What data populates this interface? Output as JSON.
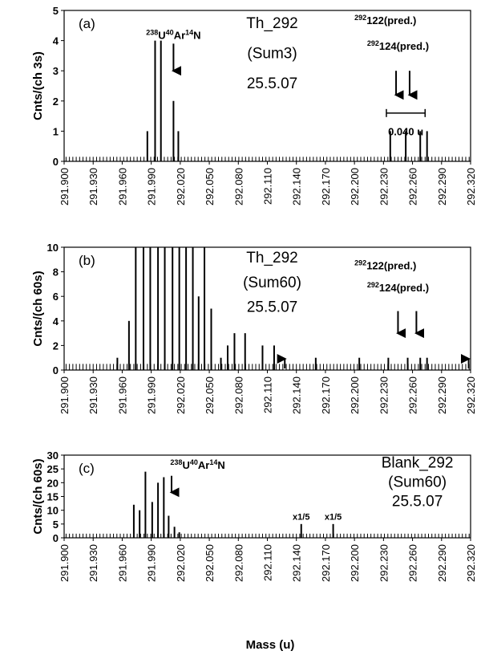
{
  "xlabel": "Mass (u)",
  "chart_data": [
    {
      "type": "bar",
      "panel": "(a)",
      "ylabel": "Cnts/(ch 3s)",
      "xlim": [
        291.9,
        292.32
      ],
      "ylim": [
        0,
        5
      ],
      "yticks": [
        0,
        1,
        2,
        3,
        4,
        5
      ],
      "xticks": [
        "291.900",
        "291.930",
        "291.960",
        "291.990",
        "292.020",
        "292.050",
        "292.080",
        "292.110",
        "292.140",
        "292.170",
        "292.200",
        "292.230",
        "292.260",
        "292.290",
        "292.320"
      ],
      "baseline": 0.15,
      "x": [
        291.986,
        291.994,
        292.0,
        292.013,
        292.018,
        292.237,
        292.253,
        292.268,
        292.275
      ],
      "values": [
        1,
        4,
        4,
        2,
        1,
        1,
        1,
        1,
        1
      ],
      "annotations": [
        {
          "text": "Th_292",
          "x": 292.115,
          "y": 4.6
        },
        {
          "text": "(Sum3)",
          "x": 292.115,
          "y": 3.6
        },
        {
          "text": "25.5.07",
          "x": 292.115,
          "y": 2.6
        }
      ],
      "isotope_labels": [
        {
          "mass": "238",
          "el": "U",
          "mass2": "40",
          "el2": "Ar",
          "mass3": "14",
          "el3": "N",
          "x": 292.013,
          "y": 4.05
        },
        {
          "mass": "292",
          "el": "122(pred.)",
          "x": 292.232,
          "y": 4.55
        },
        {
          "mass": "292",
          "el": "124(pred.)",
          "x": 292.245,
          "y": 3.7
        }
      ],
      "arrows": [
        {
          "x": 292.013,
          "y_top": 3.9,
          "y_bottom": 3.0
        },
        {
          "x": 292.243,
          "y_top": 3.0,
          "y_bottom": 2.2
        },
        {
          "x": 292.257,
          "y_top": 3.0,
          "y_bottom": 2.2
        }
      ],
      "scale_bar": {
        "x0": 292.233,
        "x1": 292.273,
        "y": 1.6,
        "label": "0.040 u",
        "label_x": 292.253,
        "label_y": 1.0
      }
    },
    {
      "type": "bar",
      "panel": "(b)",
      "ylabel": "Cnts/(ch 60s)",
      "xlim": [
        291.9,
        292.32
      ],
      "ylim": [
        0,
        10
      ],
      "yticks": [
        0,
        2,
        4,
        6,
        8,
        10
      ],
      "xticks": [
        "291.900",
        "291.930",
        "291.960",
        "291.990",
        "292.020",
        "292.050",
        "292.080",
        "292.110",
        "292.140",
        "292.170",
        "292.200",
        "292.230",
        "292.260",
        "292.290",
        "292.320"
      ],
      "baseline": 0.5,
      "x": [
        291.955,
        291.967,
        291.974,
        291.982,
        291.989,
        291.997,
        292.004,
        292.012,
        292.019,
        292.026,
        292.033,
        292.039,
        292.045,
        292.052,
        292.062,
        292.069,
        292.076,
        292.087,
        292.105,
        292.117,
        292.16,
        292.205,
        292.235,
        292.255,
        292.268,
        292.275
      ],
      "values": [
        1,
        4,
        10,
        10,
        10,
        10,
        10,
        10,
        10,
        10,
        10,
        6,
        10,
        5,
        1,
        2,
        3,
        3,
        2,
        2,
        1,
        1,
        1,
        1,
        1,
        1
      ],
      "annotations": [
        {
          "text": "Th_292",
          "x": 292.115,
          "y": 9.2
        },
        {
          "text": "(Sum60)",
          "x": 292.115,
          "y": 7.2
        },
        {
          "text": "25.5.07",
          "x": 292.115,
          "y": 5.2
        }
      ],
      "isotope_labels": [
        {
          "mass": "292",
          "el": "122(pred.)",
          "x": 292.232,
          "y": 8.2
        },
        {
          "mass": "292",
          "el": "124(pred.)",
          "x": 292.245,
          "y": 6.4
        }
      ],
      "arrows": [
        {
          "x": 292.245,
          "y_top": 4.8,
          "y_bottom": 3.0
        },
        {
          "x": 292.264,
          "y_top": 4.8,
          "y_bottom": 3.0
        }
      ],
      "bottom_arrows": [
        292.128,
        292.318
      ]
    },
    {
      "type": "bar",
      "panel": "(c)",
      "ylabel": "Cnts/(ch 60s)",
      "xlim": [
        291.9,
        292.32
      ],
      "ylim": [
        0,
        30
      ],
      "yticks": [
        0,
        5,
        10,
        15,
        20,
        25,
        30
      ],
      "xticks": [
        "291.900",
        "291.930",
        "291.960",
        "291.990",
        "292.020",
        "292.050",
        "292.080",
        "292.110",
        "292.140",
        "292.170",
        "292.200",
        "292.230",
        "292.260",
        "292.290",
        "292.320"
      ],
      "baseline": 1.5,
      "x": [
        291.972,
        291.978,
        291.984,
        291.991,
        291.997,
        292.003,
        292.008,
        292.014,
        292.019,
        292.145,
        292.178
      ],
      "values": [
        12,
        10,
        24,
        13,
        20,
        22,
        8,
        4,
        2,
        5,
        5
      ],
      "annotations": [
        {
          "text": "Blank_292",
          "x": 292.265,
          "y": 27.5
        },
        {
          "text": "(Sum60)",
          "x": 292.265,
          "y": 20.5
        },
        {
          "text": "25.5.07",
          "x": 292.265,
          "y": 13.5
        }
      ],
      "isotope_labels": [
        {
          "mass": "238",
          "el": "U",
          "mass2": "40",
          "el2": "Ar",
          "mass3": "14",
          "el3": "N",
          "x": 292.038,
          "y": 25.0
        }
      ],
      "arrows": [
        {
          "x": 292.011,
          "y_top": 22.5,
          "y_bottom": 16.5
        }
      ],
      "small_labels": [
        {
          "text": "x1/5",
          "x": 292.145,
          "y": 6.5
        },
        {
          "text": "x1/5",
          "x": 292.178,
          "y": 6.5
        }
      ]
    }
  ]
}
